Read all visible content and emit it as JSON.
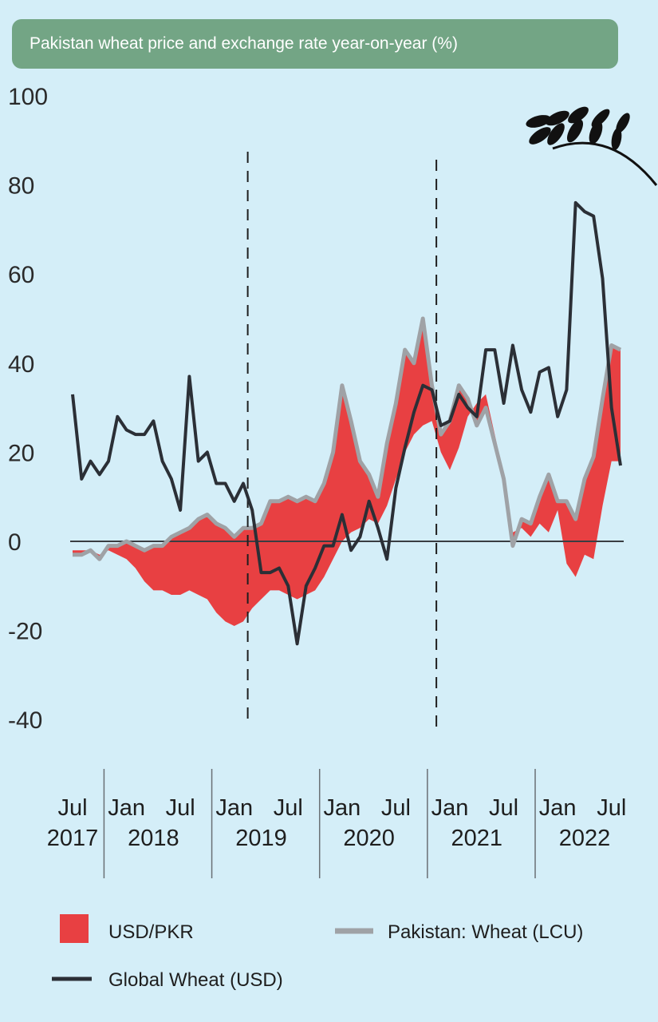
{
  "chart_data": {
    "type": "line",
    "title": "Pakistan wheat price and exchange rate year-on-year (%)",
    "ylim": [
      -40,
      100
    ],
    "yticks": [
      100,
      80,
      60,
      40,
      20,
      0,
      -20,
      -40
    ],
    "xlim": [
      0,
      61
    ],
    "x_start": "Jul 2017",
    "x_group_labels": [
      {
        "top": "Jul",
        "bottom": "2017",
        "months": [
          0
        ]
      },
      {
        "top": "Jan",
        "bottom": "2018",
        "months": [
          6
        ]
      },
      {
        "top": "Jul",
        "bottom": "",
        "months": [
          12
        ]
      },
      {
        "top": "Jan",
        "bottom": "2019",
        "months": [
          18
        ]
      },
      {
        "top": "Jul",
        "bottom": "",
        "months": [
          24
        ]
      },
      {
        "top": "Jan",
        "bottom": "2020",
        "months": [
          30
        ]
      },
      {
        "top": "Jul",
        "bottom": "",
        "months": [
          36
        ]
      },
      {
        "top": "Jan",
        "bottom": "2021",
        "months": [
          42
        ]
      },
      {
        "top": "Jul",
        "bottom": "",
        "months": [
          48
        ]
      },
      {
        "top": "Jan",
        "bottom": "2022",
        "months": [
          54
        ]
      },
      {
        "top": "Jul",
        "bottom": "",
        "months": [
          60
        ]
      }
    ],
    "year_labels": [
      {
        "text": "2017",
        "center": 0
      },
      {
        "text": "2018",
        "center": 9
      },
      {
        "text": "2019",
        "center": 21
      },
      {
        "text": "2020",
        "center": 33
      },
      {
        "text": "2021",
        "center": 45
      },
      {
        "text": "2022",
        "center": 57
      }
    ],
    "month_labels": [
      {
        "text": "Jul",
        "x": 0
      },
      {
        "text": "Jan",
        "x": 6
      },
      {
        "text": "Jul",
        "x": 12
      },
      {
        "text": "Jan",
        "x": 18
      },
      {
        "text": "Jul",
        "x": 24
      },
      {
        "text": "Jan",
        "x": 30
      },
      {
        "text": "Jul",
        "x": 36
      },
      {
        "text": "Jan",
        "x": 42
      },
      {
        "text": "Jul",
        "x": 48
      },
      {
        "text": "Jan",
        "x": 54
      },
      {
        "text": "Jul",
        "x": 60
      }
    ],
    "year_separators": [
      3.5,
      15.5,
      27.5,
      39.5,
      51.5
    ],
    "vertical_markers": [
      19.5,
      40.5
    ],
    "series": [
      {
        "name": "Global Wheat (USD)",
        "color": "#2b2f36",
        "values": [
          33,
          14,
          18,
          15,
          18,
          28,
          25,
          24,
          24,
          27,
          18,
          14,
          7,
          37,
          18,
          20,
          13,
          13,
          9,
          13,
          7,
          -7,
          -7,
          -6,
          -10,
          -23,
          -10,
          -6,
          -1,
          -1,
          6,
          -2,
          1,
          9,
          3,
          -4,
          12,
          21,
          29,
          35,
          34,
          26,
          27,
          33,
          30,
          28,
          43,
          43,
          31,
          44,
          34,
          29,
          38,
          39,
          28,
          34,
          76,
          74,
          73,
          59,
          30,
          17
        ]
      },
      {
        "name": "Pakistan: Wheat (LCU)",
        "color": "#9fa2a6",
        "values": [
          -3,
          -3,
          -2,
          -4,
          -1,
          -1,
          0,
          -1,
          -2,
          -1,
          -1,
          1,
          2,
          3,
          5,
          6,
          4,
          3,
          1,
          3,
          3,
          4,
          9,
          9,
          10,
          9,
          10,
          9,
          13,
          20,
          35,
          27,
          18,
          15,
          10,
          22,
          31,
          43,
          40,
          50,
          35,
          24,
          27,
          35,
          32,
          26,
          30,
          22,
          14,
          -1,
          5,
          4,
          10,
          15,
          9,
          9,
          5,
          14,
          19,
          32,
          44,
          43
        ]
      },
      {
        "name": "USD/PKR",
        "color": "#e84042",
        "values": [
          -2,
          -2,
          -2,
          -3,
          -2,
          -3,
          -4,
          -6,
          -9,
          -11,
          -11,
          -12,
          -12,
          -11,
          -12,
          -13,
          -16,
          -18,
          -19,
          -18,
          -15,
          -13,
          -11,
          -11,
          -12,
          -13,
          -12,
          -11,
          -8,
          -4,
          0,
          2,
          3,
          5,
          4,
          8,
          14,
          20,
          24,
          26,
          27,
          20,
          16,
          21,
          28,
          31,
          33,
          24,
          15,
          2,
          3,
          1,
          4,
          2,
          7,
          -5,
          -8,
          -3,
          -4,
          8,
          18,
          18
        ]
      }
    ],
    "legend": [
      {
        "label": "USD/PKR",
        "kind": "area",
        "color": "#e84042"
      },
      {
        "label": "Pakistan: Wheat (LCU)",
        "kind": "line",
        "color": "#9fa2a6"
      },
      {
        "label": "Global Wheat (USD)",
        "kind": "line",
        "color": "#2b2f36"
      }
    ],
    "decoration": {
      "icon": "wheat-sprig-icon",
      "color": "#111111"
    }
  }
}
